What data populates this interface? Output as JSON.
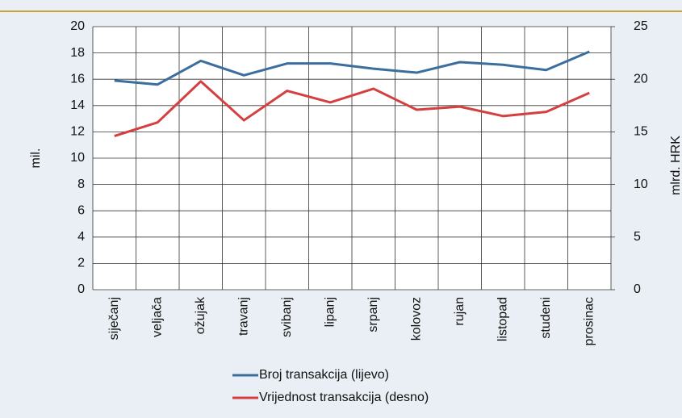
{
  "chart_data": {
    "type": "line",
    "ylabel": "mil.",
    "y2label": "mlrd. HRK",
    "categories": [
      "siječanj",
      "veljača",
      "ožujak",
      "travanj",
      "svibanj",
      "lipanj",
      "srpanj",
      "kolovoz",
      "rujan",
      "listopad",
      "studeni",
      "prosinac"
    ],
    "series": [
      {
        "name": "Broj transakcija (lijevo)",
        "color": "#3b6e9e",
        "values": [
          15.9,
          15.6,
          17.4,
          16.3,
          17.2,
          17.2,
          16.8,
          16.5,
          17.3,
          17.1,
          16.7,
          18.1
        ]
      },
      {
        "name": "Vrijednost transakcija (desno)",
        "color": "#d43f3f",
        "axis": "y2",
        "values": [
          14.6,
          15.9,
          19.8,
          16.1,
          18.9,
          17.8,
          19.1,
          17.1,
          17.4,
          16.5,
          16.9,
          18.7
        ]
      }
    ],
    "ylim": [
      0,
      20
    ],
    "yticks": [
      0,
      2,
      4,
      6,
      8,
      10,
      12,
      14,
      16,
      18,
      20
    ],
    "y2lim": [
      0,
      25
    ],
    "y2ticks": [
      0,
      5,
      10,
      15,
      20,
      25
    ],
    "grid": true
  }
}
